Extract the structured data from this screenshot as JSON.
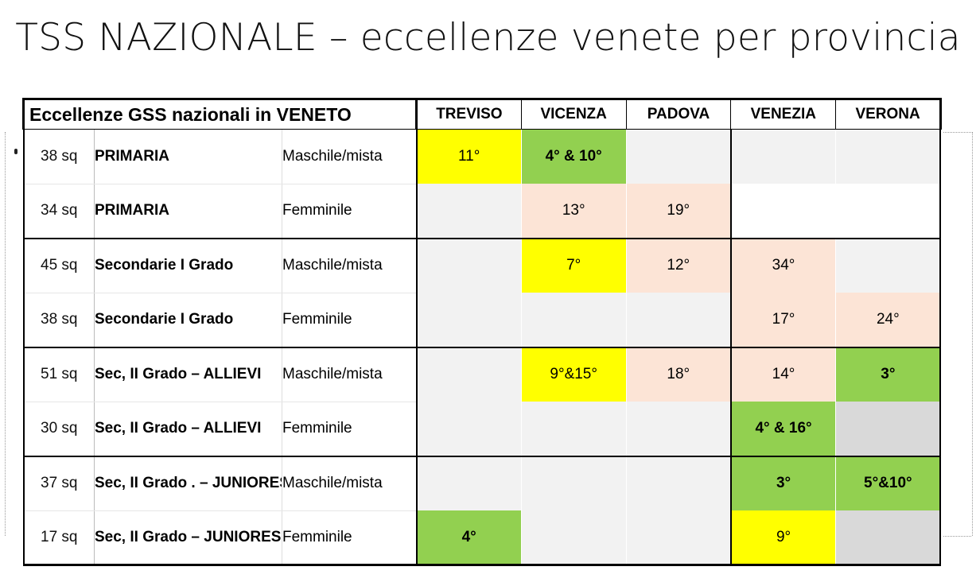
{
  "slide": {
    "title": "TSS NAZIONALE – eccellenze venete per provincia"
  },
  "table": {
    "heading": "Eccellenze GSS nazionali in VENETO",
    "provinces": [
      "TREVISO",
      "VICENZA",
      "PADOVA",
      "VENEZIA",
      "VERONA"
    ],
    "rows": [
      {
        "teams": "38 sq",
        "level": "PRIMARIA",
        "gender": "Maschile/mista",
        "cells": [
          {
            "value": "11°",
            "color": "#ffff00"
          },
          {
            "value": "4° & 10°",
            "color": "#92d050"
          },
          {
            "value": "",
            "color": "#f2f2f2"
          },
          {
            "value": "",
            "color": "#f2f2f2"
          },
          {
            "value": "",
            "color": "#f2f2f2"
          }
        ]
      },
      {
        "teams": "34 sq",
        "level": "PRIMARIA",
        "gender": "Femminile",
        "cells": [
          {
            "value": "",
            "color": "#f2f2f2"
          },
          {
            "value": "13°",
            "color": "#fce4d6"
          },
          {
            "value": "19°",
            "color": "#fce4d6"
          },
          {
            "value": "",
            "color": "#ffffff"
          },
          {
            "value": "",
            "color": "#ffffff"
          }
        ]
      },
      {
        "teams": "45 sq",
        "level": "Secondarie I Grado",
        "gender": "Maschile/mista",
        "cells": [
          {
            "value": "",
            "color": "#f2f2f2"
          },
          {
            "value": "7°",
            "color": "#ffff00"
          },
          {
            "value": "12°",
            "color": "#fce4d6"
          },
          {
            "value": "34°",
            "color": "#fce4d6"
          },
          {
            "value": "",
            "color": "#f2f2f2"
          }
        ]
      },
      {
        "teams": "38 sq",
        "level": "Secondarie I Grado",
        "gender": "Femminile",
        "cells": [
          {
            "value": "",
            "color": "#f2f2f2"
          },
          {
            "value": "",
            "color": "#f2f2f2"
          },
          {
            "value": "",
            "color": "#f2f2f2"
          },
          {
            "value": "17°",
            "color": "#fce4d6"
          },
          {
            "value": "24°",
            "color": "#fce4d6"
          }
        ]
      },
      {
        "teams": "51 sq",
        "level": "Sec, II Grado  – ALLIEVI",
        "gender": "Maschile/mista",
        "cells": [
          {
            "value": "",
            "color": "#f2f2f2"
          },
          {
            "value": "9°&15°",
            "color": "#ffff00"
          },
          {
            "value": "18°",
            "color": "#fce4d6"
          },
          {
            "value": "14°",
            "color": "#fce4d6"
          },
          {
            "value": "3°",
            "color": "#92d050"
          }
        ]
      },
      {
        "teams": "30 sq",
        "level": "Sec, II Grado  – ALLIEVI",
        "gender": "Femminile",
        "cells": [
          {
            "value": "",
            "color": "#f2f2f2"
          },
          {
            "value": "",
            "color": "#f2f2f2"
          },
          {
            "value": "",
            "color": "#f2f2f2"
          },
          {
            "value": "4° & 16°",
            "color": "#92d050"
          },
          {
            "value": "",
            "color": "#d9d9d9"
          }
        ]
      },
      {
        "teams": "37 sq",
        "level": "Sec, II Grado . – JUNIORES",
        "gender": "Maschile/mista",
        "cells": [
          {
            "value": "",
            "color": "#f2f2f2"
          },
          {
            "value": "",
            "color": "#f2f2f2"
          },
          {
            "value": "",
            "color": "#f2f2f2"
          },
          {
            "value": "3°",
            "color": "#92d050"
          },
          {
            "value": "5°&10°",
            "color": "#92d050"
          }
        ]
      },
      {
        "teams": "17 sq",
        "level": "Sec, II Grado  – JUNIORES",
        "gender": "Femminile",
        "cells": [
          {
            "value": "4°",
            "color": "#92d050"
          },
          {
            "value": "",
            "color": "#f2f2f2"
          },
          {
            "value": "",
            "color": "#f2f2f2"
          },
          {
            "value": "9°",
            "color": "#ffff00"
          },
          {
            "value": "",
            "color": "#d9d9d9"
          }
        ]
      }
    ]
  }
}
